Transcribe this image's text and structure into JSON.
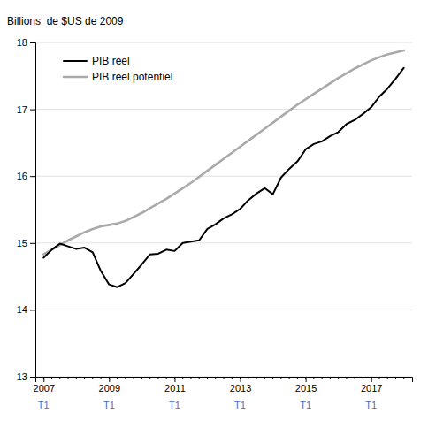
{
  "chart_data": {
    "type": "line",
    "ylabel": "Billions  de $US de 2009",
    "xlim": [
      2006.75,
      2018.25
    ],
    "xticks": [
      2007,
      2009,
      2011,
      2013,
      2015,
      2017
    ],
    "ylim": [
      13,
      18
    ],
    "yticks": [
      13,
      14,
      15,
      16,
      17,
      18
    ],
    "grid": true,
    "legend": "upper left",
    "x": [
      2007,
      2007.25,
      2007.5,
      2007.75,
      2008,
      2008.25,
      2008.5,
      2008.75,
      2009,
      2009.25,
      2009.5,
      2009.75,
      2010,
      2010.25,
      2010.5,
      2010.75,
      2011,
      2011.25,
      2011.5,
      2011.75,
      2012,
      2012.25,
      2012.5,
      2012.75,
      2013,
      2013.25,
      2013.5,
      2013.75,
      2014,
      2014.25,
      2014.5,
      2014.75,
      2015,
      2015.25,
      2015.5,
      2015.75,
      2016,
      2016.25,
      2016.5,
      2016.75,
      2017,
      2017.25,
      2017.5,
      2017.75,
      2018
    ],
    "series": [
      {
        "name": "PIB réel",
        "color": "#000000",
        "values": [
          14.78,
          14.9,
          14.99,
          14.95,
          14.91,
          14.93,
          14.86,
          14.58,
          14.38,
          14.34,
          14.4,
          14.54,
          14.68,
          14.83,
          14.84,
          14.9,
          14.88,
          15.0,
          15.02,
          15.04,
          15.21,
          15.28,
          15.37,
          15.43,
          15.51,
          15.64,
          15.74,
          15.82,
          15.73,
          15.98,
          16.11,
          16.22,
          16.4,
          16.48,
          16.52,
          16.6,
          16.66,
          16.78,
          16.84,
          16.93,
          17.03,
          17.19,
          17.31,
          17.46,
          17.62
        ]
      },
      {
        "name": "PIB réel potentiel",
        "color": "#aaaaaa",
        "values": [
          14.83,
          14.9,
          14.97,
          15.04,
          15.1,
          15.16,
          15.21,
          15.25,
          15.27,
          15.29,
          15.33,
          15.39,
          15.45,
          15.52,
          15.59,
          15.66,
          15.74,
          15.82,
          15.9,
          15.99,
          16.08,
          16.17,
          16.26,
          16.35,
          16.44,
          16.53,
          16.62,
          16.71,
          16.8,
          16.89,
          16.98,
          17.07,
          17.15,
          17.23,
          17.31,
          17.39,
          17.47,
          17.54,
          17.61,
          17.67,
          17.73,
          17.78,
          17.82,
          17.85,
          17.88
        ]
      }
    ],
    "annotations": [
      {
        "text": "T1",
        "x": 2007,
        "color": "#4472c4"
      },
      {
        "text": "T1",
        "x": 2009,
        "color": "#4472c4"
      },
      {
        "text": "T1",
        "x": 2011,
        "color": "#4472c4"
      },
      {
        "text": "T1",
        "x": 2013,
        "color": "#4472c4"
      },
      {
        "text": "T1",
        "x": 2015,
        "color": "#4472c4"
      },
      {
        "text": "T1",
        "x": 2017,
        "color": "#4472c4"
      }
    ]
  }
}
